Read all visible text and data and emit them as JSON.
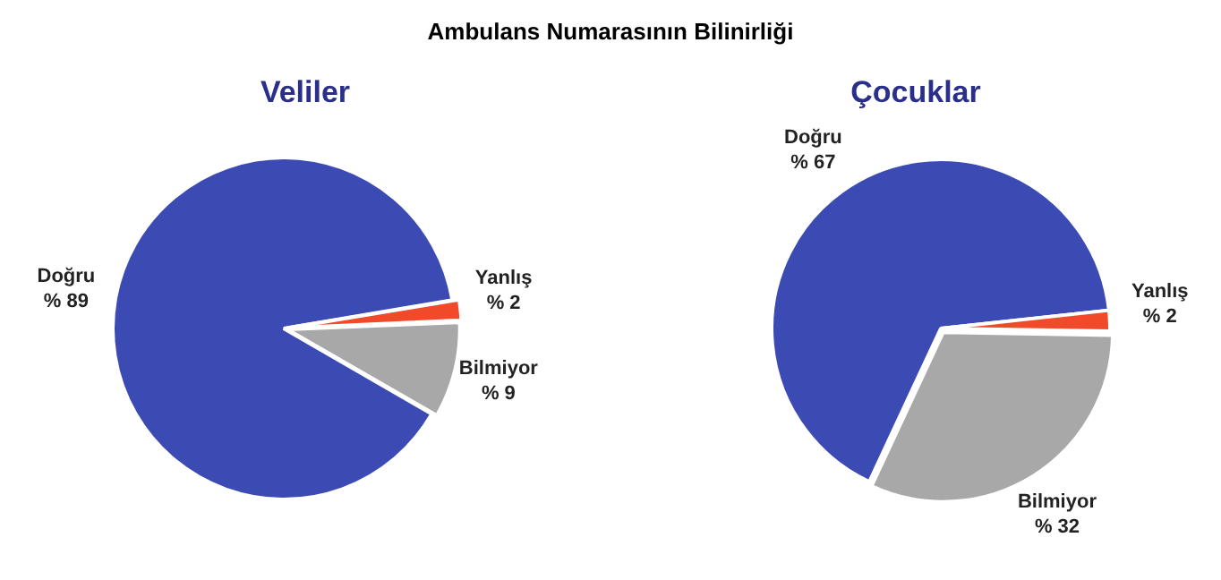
{
  "chart_data": [
    {
      "type": "pie",
      "title": "Ambulans Numarasının Bilinirliği",
      "subtitle": "Veliler",
      "categories": [
        "Doğru",
        "Yanlış",
        "Bilmiyor"
      ],
      "values": [
        89,
        2,
        9
      ],
      "colors": [
        "#3c4bb4",
        "#f04a2a",
        "#a8a8a8"
      ],
      "value_labels": [
        "% 89",
        "% 2",
        "% 9"
      ],
      "legend": false
    },
    {
      "type": "pie",
      "subtitle": "Çocuklar",
      "categories": [
        "Doğru",
        "Yanlış",
        "Bilmiyor"
      ],
      "values": [
        67,
        2,
        32
      ],
      "colors": [
        "#3c4bb4",
        "#f04a2a",
        "#a8a8a8"
      ],
      "value_labels": [
        "% 67",
        "% 2",
        "% 32"
      ],
      "legend": false
    }
  ]
}
